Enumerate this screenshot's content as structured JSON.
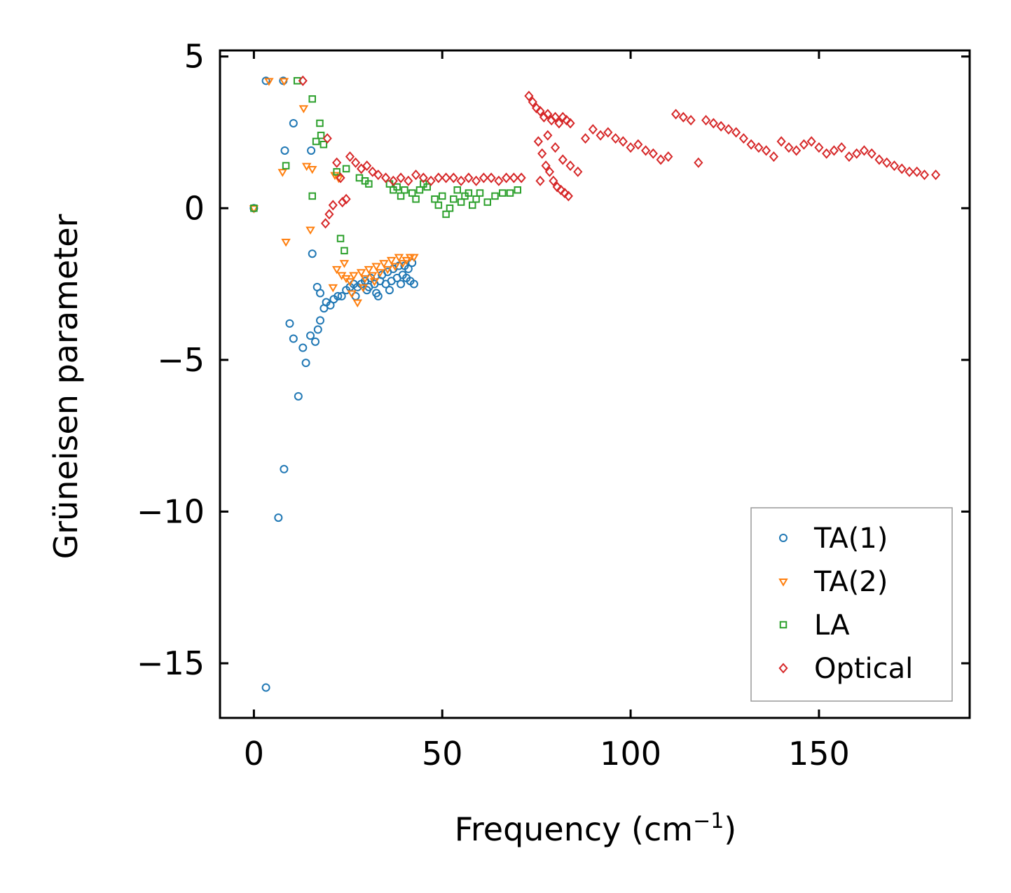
{
  "chart_data": {
    "type": "scatter",
    "title": "",
    "xlabel": "Frequency (cm",
    "xlabel_sup": "−1",
    "xlabel_end": ")",
    "ylabel": "Grüneisen parameter",
    "xlim": [
      -9,
      190
    ],
    "ylim": [
      -16.8,
      5.2
    ],
    "xticks": [
      0,
      50,
      100,
      150
    ],
    "xtick_labels": [
      "0",
      "50",
      "100",
      "150"
    ],
    "yticks": [
      5,
      0,
      -5,
      -10,
      -15
    ],
    "ytick_labels": [
      "5",
      "0",
      "−5",
      "−10",
      "−15"
    ],
    "legend_position": "lower right",
    "series": [
      {
        "name": "TA(1)",
        "marker": "circle",
        "color": "#1f77b4",
        "points": [
          [
            0,
            0
          ],
          [
            3.2,
            4.2
          ],
          [
            7.8,
            4.2
          ],
          [
            3.2,
            -15.8
          ],
          [
            6.5,
            -10.2
          ],
          [
            8.0,
            -8.6
          ],
          [
            9.5,
            -3.8
          ],
          [
            10.5,
            -4.3
          ],
          [
            11.8,
            -6.2
          ],
          [
            13.0,
            -4.6
          ],
          [
            13.8,
            -5.1
          ],
          [
            15.0,
            -4.2
          ],
          [
            16.3,
            -4.4
          ],
          [
            17.0,
            -4.0
          ],
          [
            17.6,
            -3.7
          ],
          [
            18.6,
            -3.3
          ],
          [
            19.2,
            -3.1
          ],
          [
            20.3,
            -3.2
          ],
          [
            21.2,
            -3.0
          ],
          [
            22.3,
            -2.9
          ],
          [
            23.3,
            -2.9
          ],
          [
            15.5,
            -1.5
          ],
          [
            16.8,
            -2.6
          ],
          [
            17.6,
            -2.8
          ],
          [
            10.5,
            2.8
          ],
          [
            8.2,
            1.9
          ],
          [
            15.2,
            1.9
          ],
          [
            24.5,
            -2.7
          ],
          [
            25.5,
            -2.6
          ],
          [
            26.5,
            -2.5
          ],
          [
            27.5,
            -2.6
          ],
          [
            28.5,
            -2.5
          ],
          [
            29.5,
            -2.4
          ],
          [
            30.5,
            -2.6
          ],
          [
            31.0,
            -2.3
          ],
          [
            32.0,
            -2.5
          ],
          [
            32.5,
            -2.8
          ],
          [
            33.5,
            -2.4
          ],
          [
            34.0,
            -2.2
          ],
          [
            35.0,
            -2.5
          ],
          [
            35.5,
            -2.1
          ],
          [
            36.5,
            -2.4
          ],
          [
            37.0,
            -2.0
          ],
          [
            38.0,
            -2.3
          ],
          [
            38.5,
            -1.9
          ],
          [
            39.5,
            -2.2
          ],
          [
            40.0,
            -1.9
          ],
          [
            40.5,
            -2.3
          ],
          [
            41.0,
            -2.0
          ],
          [
            41.5,
            -2.4
          ],
          [
            42.0,
            -1.8
          ],
          [
            42.5,
            -2.5
          ],
          [
            27.0,
            -2.9
          ],
          [
            30.0,
            -2.7
          ],
          [
            33.0,
            -2.9
          ],
          [
            36.0,
            -2.7
          ],
          [
            39.0,
            -2.5
          ]
        ]
      },
      {
        "name": "TA(2)",
        "marker": "triangle",
        "color": "#ff7f0e",
        "points": [
          [
            0,
            0
          ],
          [
            4.0,
            4.2
          ],
          [
            8.0,
            4.2
          ],
          [
            7.6,
            1.2
          ],
          [
            8.5,
            -1.1
          ],
          [
            13.2,
            3.3
          ],
          [
            14.0,
            1.4
          ],
          [
            15.0,
            -0.7
          ],
          [
            15.5,
            1.3
          ],
          [
            21.0,
            -2.6
          ],
          [
            21.5,
            1.1
          ],
          [
            22.0,
            -2.0
          ],
          [
            22.5,
            1.0
          ],
          [
            23.3,
            -2.2
          ],
          [
            24.0,
            -1.8
          ],
          [
            24.5,
            -2.3
          ],
          [
            25.5,
            -2.4
          ],
          [
            26.5,
            -2.2
          ],
          [
            27.5,
            -3.1
          ],
          [
            28.5,
            -2.1
          ],
          [
            29.5,
            -2.3
          ],
          [
            30.5,
            -2.0
          ],
          [
            31.5,
            -2.2
          ],
          [
            32.5,
            -1.9
          ],
          [
            33.5,
            -2.1
          ],
          [
            34.5,
            -1.8
          ],
          [
            35.5,
            -2.0
          ],
          [
            36.5,
            -1.7
          ],
          [
            37.5,
            -1.9
          ],
          [
            38.5,
            -1.6
          ],
          [
            39.5,
            -1.8
          ],
          [
            40.5,
            -1.7
          ],
          [
            41.5,
            -1.6
          ],
          [
            42.5,
            -1.6
          ],
          [
            26.0,
            -2.8
          ],
          [
            29.0,
            -2.6
          ],
          [
            32.0,
            -2.4
          ]
        ]
      },
      {
        "name": "LA",
        "marker": "square",
        "color": "#2ca02c",
        "points": [
          [
            0,
            0
          ],
          [
            11.5,
            4.2
          ],
          [
            8.5,
            1.4
          ],
          [
            15.5,
            3.6
          ],
          [
            15.5,
            0.4
          ],
          [
            16.5,
            2.2
          ],
          [
            17.5,
            2.8
          ],
          [
            17.8,
            2.4
          ],
          [
            18.5,
            2.1
          ],
          [
            22.0,
            1.2
          ],
          [
            23.0,
            -1.0
          ],
          [
            24.0,
            -1.4
          ],
          [
            24.5,
            1.3
          ],
          [
            28.0,
            1.0
          ],
          [
            29.5,
            0.9
          ],
          [
            30.5,
            0.8
          ],
          [
            36.0,
            0.8
          ],
          [
            37.0,
            0.6
          ],
          [
            38.0,
            0.7
          ],
          [
            39.0,
            0.4
          ],
          [
            40.0,
            0.6
          ],
          [
            42.0,
            0.5
          ],
          [
            43.0,
            0.3
          ],
          [
            44.0,
            0.6
          ],
          [
            45.0,
            0.8
          ],
          [
            46.0,
            0.7
          ],
          [
            48.0,
            0.3
          ],
          [
            49.0,
            0.1
          ],
          [
            50.0,
            0.4
          ],
          [
            51.0,
            -0.2
          ],
          [
            52.0,
            0.0
          ],
          [
            53.0,
            0.3
          ],
          [
            54.0,
            0.6
          ],
          [
            55.0,
            0.2
          ],
          [
            56.0,
            0.4
          ],
          [
            57.0,
            0.5
          ],
          [
            58.0,
            0.1
          ],
          [
            59.0,
            0.3
          ],
          [
            60.0,
            0.5
          ],
          [
            62.0,
            0.2
          ],
          [
            64.0,
            0.4
          ],
          [
            66.0,
            0.5
          ],
          [
            68.0,
            0.5
          ],
          [
            70.0,
            0.6
          ]
        ]
      },
      {
        "name": "Optical",
        "marker": "diamond",
        "color": "#d62728",
        "points": [
          [
            13.0,
            4.2
          ],
          [
            19.5,
            2.3
          ],
          [
            19.0,
            -0.5
          ],
          [
            20.0,
            -0.2
          ],
          [
            21.0,
            0.1
          ],
          [
            22.0,
            1.5
          ],
          [
            23.0,
            1.0
          ],
          [
            23.5,
            0.2
          ],
          [
            24.5,
            0.3
          ],
          [
            25.5,
            1.7
          ],
          [
            27.0,
            1.5
          ],
          [
            28.5,
            1.3
          ],
          [
            30.0,
            1.4
          ],
          [
            31.5,
            1.2
          ],
          [
            33.0,
            1.1
          ],
          [
            35.0,
            1.0
          ],
          [
            37.0,
            0.9
          ],
          [
            39.0,
            1.0
          ],
          [
            41.0,
            0.9
          ],
          [
            43.0,
            1.1
          ],
          [
            45.0,
            1.0
          ],
          [
            47.0,
            0.9
          ],
          [
            49.0,
            1.0
          ],
          [
            51.0,
            1.0
          ],
          [
            53.0,
            1.0
          ],
          [
            55.0,
            0.9
          ],
          [
            57.0,
            1.0
          ],
          [
            59.0,
            0.9
          ],
          [
            61.0,
            1.0
          ],
          [
            63.0,
            1.0
          ],
          [
            65.0,
            0.9
          ],
          [
            67.0,
            1.0
          ],
          [
            69.0,
            1.0
          ],
          [
            71.0,
            1.0
          ],
          [
            73.0,
            3.7
          ],
          [
            74.0,
            3.5
          ],
          [
            75.0,
            3.3
          ],
          [
            76.0,
            3.2
          ],
          [
            77.0,
            3.0
          ],
          [
            78.0,
            3.1
          ],
          [
            79.0,
            2.9
          ],
          [
            80.0,
            3.0
          ],
          [
            81.0,
            2.8
          ],
          [
            82.0,
            3.0
          ],
          [
            83.0,
            2.9
          ],
          [
            84.0,
            2.8
          ],
          [
            75.5,
            2.2
          ],
          [
            76.5,
            1.8
          ],
          [
            77.5,
            1.4
          ],
          [
            78.5,
            1.2
          ],
          [
            79.5,
            0.9
          ],
          [
            80.5,
            0.7
          ],
          [
            81.5,
            0.6
          ],
          [
            82.5,
            0.5
          ],
          [
            83.5,
            0.4
          ],
          [
            76.0,
            0.9
          ],
          [
            78.0,
            2.4
          ],
          [
            80.0,
            2.0
          ],
          [
            82.0,
            1.6
          ],
          [
            84.0,
            1.4
          ],
          [
            86.0,
            1.2
          ],
          [
            88.0,
            2.3
          ],
          [
            90.0,
            2.6
          ],
          [
            92.0,
            2.4
          ],
          [
            94.0,
            2.5
          ],
          [
            96.0,
            2.3
          ],
          [
            98.0,
            2.2
          ],
          [
            100.0,
            2.0
          ],
          [
            102.0,
            2.1
          ],
          [
            104.0,
            1.9
          ],
          [
            106.0,
            1.8
          ],
          [
            108.0,
            1.6
          ],
          [
            110.0,
            1.7
          ],
          [
            112.0,
            3.1
          ],
          [
            114.0,
            3.0
          ],
          [
            116.0,
            2.9
          ],
          [
            118.0,
            1.5
          ],
          [
            120.0,
            2.9
          ],
          [
            122.0,
            2.8
          ],
          [
            124.0,
            2.7
          ],
          [
            126.0,
            2.6
          ],
          [
            128.0,
            2.5
          ],
          [
            130.0,
            2.3
          ],
          [
            132.0,
            2.1
          ],
          [
            134.0,
            2.0
          ],
          [
            136.0,
            1.9
          ],
          [
            138.0,
            1.7
          ],
          [
            140.0,
            2.2
          ],
          [
            142.0,
            2.0
          ],
          [
            144.0,
            1.9
          ],
          [
            146.0,
            2.1
          ],
          [
            148.0,
            2.2
          ],
          [
            150.0,
            2.0
          ],
          [
            152.0,
            1.8
          ],
          [
            154.0,
            1.9
          ],
          [
            156.0,
            2.0
          ],
          [
            158.0,
            1.7
          ],
          [
            160.0,
            1.8
          ],
          [
            162.0,
            1.9
          ],
          [
            164.0,
            1.8
          ],
          [
            166.0,
            1.6
          ],
          [
            168.0,
            1.5
          ],
          [
            170.0,
            1.4
          ],
          [
            172.0,
            1.3
          ],
          [
            174.0,
            1.2
          ],
          [
            176.0,
            1.2
          ],
          [
            178.0,
            1.1
          ],
          [
            181.0,
            1.1
          ]
        ]
      }
    ]
  }
}
